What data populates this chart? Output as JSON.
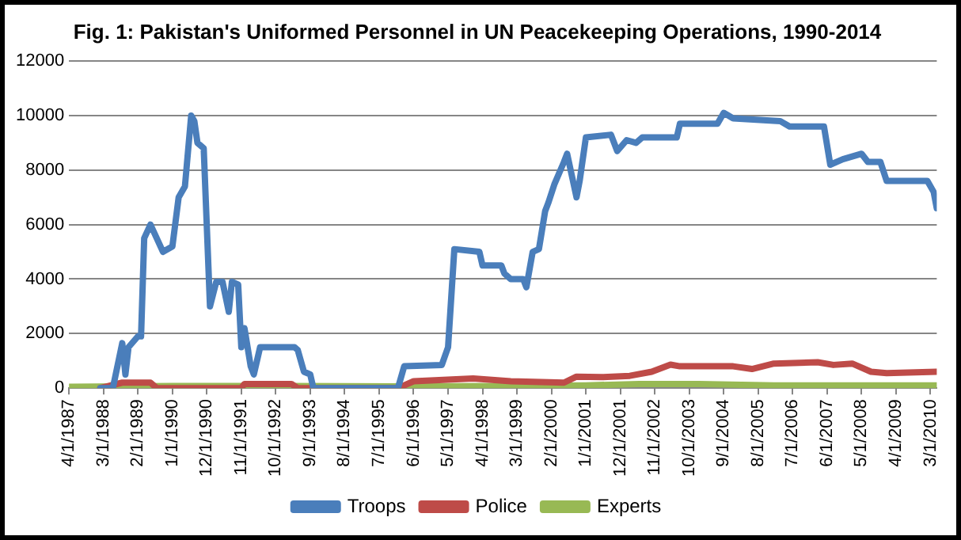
{
  "chart_data": {
    "type": "line",
    "title": "Fig. 1: Pakistan's Uniformed Personnel in UN Peacekeeping Operations, 1990-2014",
    "xlim": [
      "1987-04",
      "2010-05"
    ],
    "xticks": [
      {
        "value": "1987-04",
        "label": "4/1/1987"
      },
      {
        "value": "1988-03",
        "label": "3/1/1988"
      },
      {
        "value": "1989-02",
        "label": "2/1/1989"
      },
      {
        "value": "1990-01",
        "label": "1/1/1990"
      },
      {
        "value": "1990-12",
        "label": "12/1/1990"
      },
      {
        "value": "1991-11",
        "label": "11/1/1991"
      },
      {
        "value": "1992-10",
        "label": "10/1/1992"
      },
      {
        "value": "1993-09",
        "label": "9/1/1993"
      },
      {
        "value": "1994-08",
        "label": "8/1/1994"
      },
      {
        "value": "1995-07",
        "label": "7/1/1995"
      },
      {
        "value": "1996-06",
        "label": "6/1/1996"
      },
      {
        "value": "1997-05",
        "label": "5/1/1997"
      },
      {
        "value": "1998-04",
        "label": "4/1/1998"
      },
      {
        "value": "1999-03",
        "label": "3/1/1999"
      },
      {
        "value": "2000-02",
        "label": "2/1/2000"
      },
      {
        "value": "2001-01",
        "label": "1/1/2001"
      },
      {
        "value": "2001-12",
        "label": "12/1/2001"
      },
      {
        "value": "2002-11",
        "label": "11/1/2002"
      },
      {
        "value": "2003-10",
        "label": "10/1/2003"
      },
      {
        "value": "2004-09",
        "label": "9/1/2004"
      },
      {
        "value": "2005-08",
        "label": "8/1/2005"
      },
      {
        "value": "2006-07",
        "label": "7/1/2006"
      },
      {
        "value": "2007-06",
        "label": "6/1/2007"
      },
      {
        "value": "2008-05",
        "label": "5/1/2008"
      },
      {
        "value": "2009-04",
        "label": "4/1/2009"
      },
      {
        "value": "2010-03",
        "label": "3/1/2010"
      }
    ],
    "ylim": [
      0,
      12000
    ],
    "yticks": [
      0,
      2000,
      4000,
      6000,
      8000,
      10000,
      12000
    ],
    "grid": "y",
    "legend": "bottom",
    "series": [
      {
        "name": "Troops",
        "color": "#4a7ebb",
        "x": [
          "1988-02",
          "1988-06",
          "1988-09",
          "1988-10",
          "1988-11",
          "1989-02",
          "1989-03",
          "1989-04",
          "1989-06",
          "1989-10",
          "1990-01",
          "1990-03",
          "1990-05",
          "1990-07",
          "1990-08",
          "1990-09",
          "1990-11",
          "1991-01",
          "1991-03",
          "1991-05",
          "1991-07",
          "1991-08",
          "1991-10",
          "1991-11",
          "1991-12",
          "1992-02",
          "1992-03",
          "1992-05",
          "1993-04",
          "1993-05",
          "1993-07",
          "1993-09",
          "1993-10",
          "1996-01",
          "1996-03",
          "1997-03",
          "1997-05",
          "1997-07",
          "1998-03",
          "1998-04",
          "1998-10",
          "1998-11",
          "1999-01",
          "1999-05",
          "1999-06",
          "1999-08",
          "1999-10",
          "1999-12",
          "2000-01",
          "2000-03",
          "2000-06",
          "2000-07",
          "2000-10",
          "2000-11",
          "2001-01",
          "2001-09",
          "2001-11",
          "2002-02",
          "2002-05",
          "2002-07",
          "2003-06",
          "2003-07",
          "2004-07",
          "2004-09",
          "2004-12",
          "2006-03",
          "2006-06",
          "2007-05",
          "2007-07",
          "2007-11",
          "2008-02",
          "2008-05",
          "2008-07",
          "2008-11",
          "2009-01",
          "2010-02",
          "2010-04",
          "2010-05"
        ],
        "values": [
          0,
          0,
          1650,
          500,
          1500,
          1900,
          1900,
          5500,
          6000,
          5000,
          5200,
          7000,
          7400,
          10000,
          9800,
          9000,
          8800,
          3000,
          3900,
          3900,
          2800,
          3900,
          3800,
          1500,
          2200,
          800,
          500,
          1500,
          1500,
          1400,
          600,
          500,
          0,
          0,
          800,
          850,
          1500,
          5100,
          5000,
          4500,
          4500,
          4200,
          4000,
          4000,
          3700,
          5000,
          5100,
          6500,
          6800,
          7500,
          8300,
          8600,
          7000,
          7600,
          9200,
          9300,
          8700,
          9100,
          9000,
          9200,
          9200,
          9700,
          9700,
          10100,
          9900,
          9800,
          9600,
          9600,
          8200,
          8400,
          8500,
          8600,
          8300,
          8300,
          7600,
          7600,
          7200,
          6600
        ]
      },
      {
        "name": "Police",
        "color": "#be4b48",
        "x": [
          "1988-02",
          "1988-09",
          "1989-06",
          "1989-08",
          "1991-11",
          "1991-12",
          "1993-03",
          "1993-05",
          "1996-01",
          "1996-06",
          "1998-01",
          "1999-01",
          "2000-06",
          "2000-10",
          "2001-06",
          "2002-03",
          "2002-10",
          "2003-04",
          "2003-07",
          "2004-12",
          "2005-06",
          "2006-01",
          "2007-03",
          "2007-08",
          "2008-02",
          "2008-08",
          "2009-01",
          "2010-05"
        ],
        "values": [
          0,
          200,
          200,
          0,
          0,
          150,
          150,
          0,
          0,
          250,
          350,
          250,
          200,
          420,
          400,
          450,
          600,
          860,
          800,
          800,
          700,
          900,
          950,
          850,
          900,
          600,
          550,
          600
        ]
      },
      {
        "name": "Experts",
        "color": "#98b954",
        "x": [
          "1987-04",
          "1990-01",
          "1993-01",
          "1996-01",
          "1999-01",
          "2001-01",
          "2002-06",
          "2004-01",
          "2006-01",
          "2008-01",
          "2010-05"
        ],
        "values": [
          50,
          80,
          80,
          60,
          80,
          100,
          150,
          150,
          100,
          100,
          100
        ]
      }
    ]
  }
}
